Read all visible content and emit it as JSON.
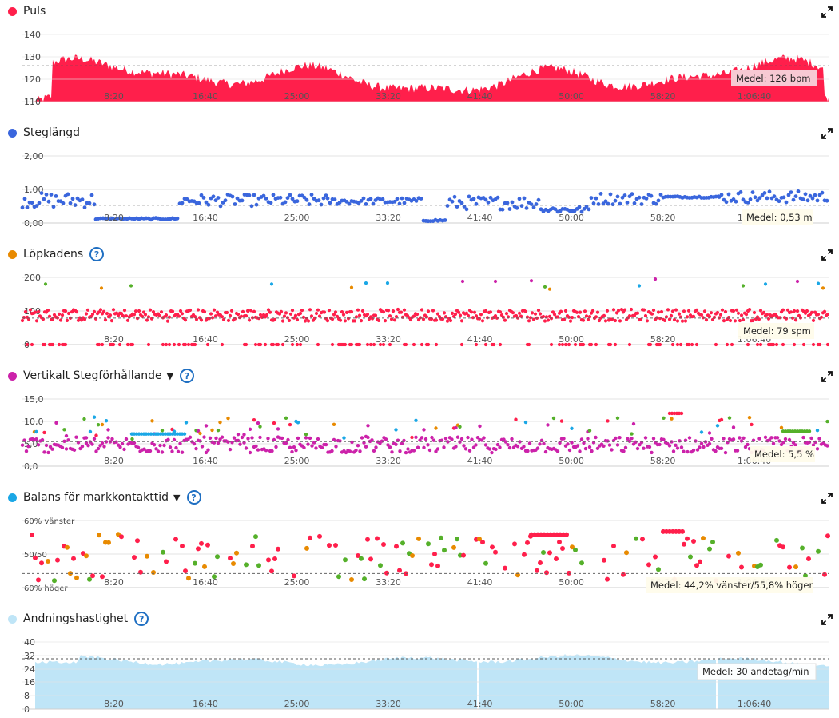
{
  "x_ticks": [
    "8:20",
    "16:40",
    "25:00",
    "33:20",
    "41:40",
    "50:00",
    "58:20",
    "1:06:40"
  ],
  "colors": {
    "red": "#ff1f4b",
    "blue": "#3a66dd",
    "orange": "#e88a00",
    "magenta": "#cc22aa",
    "cyan": "#1aa7e6",
    "green": "#55b02a",
    "lightblue": "#bfe5f7"
  },
  "chart_data": [
    {
      "type": "area",
      "title": "Puls",
      "yticks": [
        "140",
        "130",
        "120",
        "110"
      ],
      "ylim": [
        110,
        140
      ],
      "average": 126,
      "average_label": "Medel: 126 bpm",
      "duration_seconds": 4410
    },
    {
      "type": "scatter",
      "title": "Steglängd",
      "yticks": [
        "2,00",
        "1,00",
        "0,00"
      ],
      "ylim": [
        0,
        2
      ],
      "average": 0.53,
      "average_label": "Medel: 0,53 m"
    },
    {
      "type": "scatter",
      "title": "Löpkadens",
      "yticks": [
        "200",
        "100",
        "0"
      ],
      "ylim": [
        0,
        200
      ],
      "average": 79,
      "average_label": "Medel: 79 spm"
    },
    {
      "type": "scatter",
      "title": "Vertikalt Stegförhållande",
      "yticks": [
        "15,0",
        "10,0",
        "5,0",
        "0,0"
      ],
      "ylim": [
        0,
        15
      ],
      "average": 5.5,
      "average_label": "Medel: 5,5 %"
    },
    {
      "type": "scatter",
      "title": "Balans för markkontakttid",
      "yticks": [
        "60% vänster",
        "50/50",
        "60% höger"
      ],
      "ylim": [
        40,
        60
      ],
      "average": 44.2,
      "average_label": "Medel: 44,2% vänster/55,8% höger"
    },
    {
      "type": "area",
      "title": "Andningshastighet",
      "yticks": [
        "40",
        "32",
        "24",
        "16",
        "8",
        "0"
      ],
      "ylim": [
        0,
        40
      ],
      "average": 30,
      "average_label": "Medel: 30 andetag/min"
    }
  ]
}
